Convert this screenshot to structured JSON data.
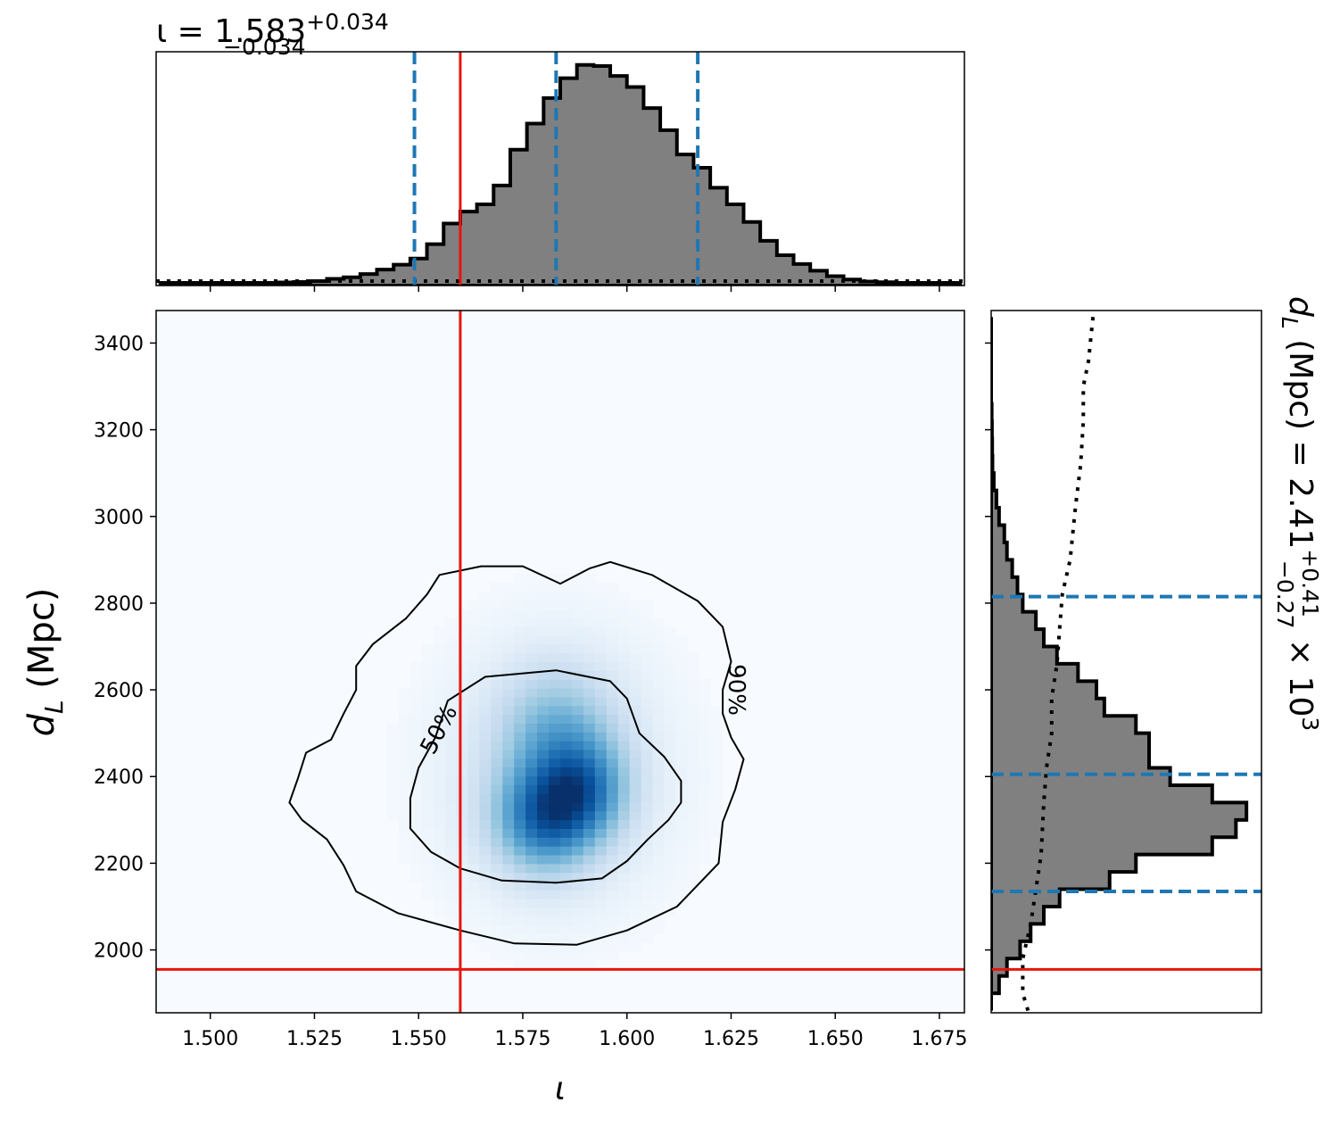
{
  "chart_data": [
    {
      "type": "histogram",
      "panel": "iota-marginal",
      "title_main": "ι = 1.583",
      "title_sup": "+0.034",
      "title_sub": "−0.034",
      "xlim": [
        1.487,
        1.681
      ],
      "median": 1.583,
      "lower": 1.549,
      "upper": 1.617,
      "injected": 1.56,
      "bin_edges": [
        1.488,
        1.492,
        1.496,
        1.5,
        1.504,
        1.508,
        1.512,
        1.516,
        1.52,
        1.524,
        1.528,
        1.532,
        1.536,
        1.54,
        1.544,
        1.548,
        1.552,
        1.556,
        1.56,
        1.564,
        1.568,
        1.572,
        1.576,
        1.58,
        1.584,
        1.588,
        1.592,
        1.596,
        1.6,
        1.604,
        1.608,
        1.612,
        1.616,
        1.62,
        1.624,
        1.628,
        1.632,
        1.636,
        1.64,
        1.644,
        1.648,
        1.652,
        1.656,
        1.66,
        1.664,
        1.668,
        1.672,
        1.676,
        1.68
      ],
      "density": [
        0.0,
        0.0,
        0.0,
        0.0,
        0.0,
        0.0,
        0.0,
        0.002,
        0.004,
        0.008,
        0.018,
        0.025,
        0.04,
        0.06,
        0.082,
        0.11,
        0.175,
        0.268,
        0.322,
        0.355,
        0.44,
        0.602,
        0.72,
        0.835,
        0.925,
        0.985,
        0.98,
        0.935,
        0.885,
        0.79,
        0.69,
        0.58,
        0.52,
        0.43,
        0.355,
        0.275,
        0.19,
        0.125,
        0.085,
        0.055,
        0.03,
        0.015,
        0.006,
        0.003,
        0.0,
        0.0,
        0.0,
        0.0
      ],
      "prior_level": 0.025
    },
    {
      "type": "heatmap",
      "panel": "joint",
      "xlabel": "ι",
      "ylabel": "d_L (Mpc)",
      "xlim": [
        1.487,
        1.681
      ],
      "ylim": [
        1855,
        3475
      ],
      "xticks": [
        "1.500",
        "1.525",
        "1.550",
        "1.575",
        "1.600",
        "1.625",
        "1.650",
        "1.675"
      ],
      "xtick_values": [
        1.5,
        1.525,
        1.55,
        1.575,
        1.6,
        1.625,
        1.65,
        1.675
      ],
      "yticks": [
        "2000",
        "2200",
        "2400",
        "2600",
        "2800",
        "3000",
        "3200",
        "3400"
      ],
      "ytick_values": [
        2000,
        2200,
        2400,
        2600,
        2800,
        3000,
        3200,
        3400
      ],
      "injected_iota": 1.56,
      "injected_dL": 1955,
      "density_peaks": [
        {
          "x": 1.58,
          "y": 2300,
          "sx": 0.0085,
          "sy": 85,
          "w": 1.0
        },
        {
          "x": 1.59,
          "y": 2370,
          "sx": 0.0075,
          "sy": 80,
          "w": 0.75
        },
        {
          "x": 1.583,
          "y": 2500,
          "sx": 0.0095,
          "sy": 105,
          "w": 0.55
        },
        {
          "x": 1.583,
          "y": 2410,
          "sx": 0.019,
          "sy": 215,
          "w": 0.35
        }
      ],
      "contours": [
        {
          "label": "50%",
          "points": [
            [
              1.566,
              2630
            ],
            [
              1.583,
              2645
            ],
            [
              1.596,
              2620
            ],
            [
              1.6,
              2580
            ],
            [
              1.603,
              2500
            ],
            [
              1.609,
              2445
            ],
            [
              1.613,
              2390
            ],
            [
              1.613,
              2340
            ],
            [
              1.61,
              2300
            ],
            [
              1.605,
              2255
            ],
            [
              1.6,
              2205
            ],
            [
              1.594,
              2165
            ],
            [
              1.583,
              2155
            ],
            [
              1.57,
              2160
            ],
            [
              1.56,
              2188
            ],
            [
              1.553,
              2226
            ],
            [
              1.548,
              2280
            ],
            [
              1.548,
              2350
            ],
            [
              1.55,
              2420
            ],
            [
              1.554,
              2490
            ],
            [
              1.557,
              2575
            ]
          ]
        },
        {
          "label": "90%",
          "points": [
            [
              1.555,
              2865
            ],
            [
              1.565,
              2885
            ],
            [
              1.575,
              2885
            ],
            [
              1.584,
              2845
            ],
            [
              1.591,
              2880
            ],
            [
              1.596,
              2895
            ],
            [
              1.606,
              2865
            ],
            [
              1.617,
              2805
            ],
            [
              1.623,
              2745
            ],
            [
              1.625,
              2665
            ],
            [
              1.623,
              2600
            ],
            [
              1.623,
              2545
            ],
            [
              1.625,
              2490
            ],
            [
              1.628,
              2440
            ],
            [
              1.626,
              2370
            ],
            [
              1.623,
              2295
            ],
            [
              1.622,
              2200
            ],
            [
              1.612,
              2100
            ],
            [
              1.6,
              2045
            ],
            [
              1.588,
              2012
            ],
            [
              1.573,
              2015
            ],
            [
              1.56,
              2045
            ],
            [
              1.545,
              2085
            ],
            [
              1.535,
              2135
            ],
            [
              1.532,
              2195
            ],
            [
              1.528,
              2255
            ],
            [
              1.522,
              2300
            ],
            [
              1.519,
              2340
            ],
            [
              1.521,
              2395
            ],
            [
              1.523,
              2455
            ],
            [
              1.529,
              2485
            ],
            [
              1.532,
              2545
            ],
            [
              1.535,
              2600
            ],
            [
              1.535,
              2655
            ],
            [
              1.539,
              2705
            ],
            [
              1.547,
              2765
            ],
            [
              1.552,
              2820
            ]
          ]
        }
      ]
    },
    {
      "type": "histogram",
      "panel": "dL-marginal",
      "orientation": "horizontal",
      "title_main": "d",
      "title_sub_L": "L",
      "title_rest": " (Mpc) = 2.41",
      "title_sup": "+0.41",
      "title_sub": "−0.27",
      "title_tail": " × 10",
      "title_exp": "3",
      "ylim": [
        1855,
        3475
      ],
      "median": 2405,
      "lower": 2135,
      "upper": 2815,
      "injected": 1955,
      "bin_edges": [
        1860,
        1900,
        1940,
        1980,
        2020,
        2060,
        2100,
        2140,
        2180,
        2220,
        2260,
        2300,
        2340,
        2380,
        2420,
        2460,
        2500,
        2540,
        2580,
        2620,
        2660,
        2700,
        2740,
        2780,
        2820,
        2860,
        2900,
        2940,
        2980,
        3020,
        3060,
        3100,
        3140,
        3180,
        3220,
        3260,
        3300,
        3340,
        3380,
        3420,
        3460
      ],
      "density": [
        0.0,
        0.03,
        0.06,
        0.11,
        0.15,
        0.2,
        0.26,
        0.45,
        0.55,
        0.84,
        0.93,
        0.97,
        0.84,
        0.68,
        0.6,
        0.6,
        0.55,
        0.43,
        0.4,
        0.33,
        0.25,
        0.2,
        0.17,
        0.12,
        0.1,
        0.08,
        0.06,
        0.05,
        0.03,
        0.02,
        0.01,
        0.005,
        0.004,
        0.003,
        0.002,
        0.0,
        0.0,
        0.0,
        0.0,
        0.0
      ],
      "prior": [
        [
          1860,
          0.14
        ],
        [
          1900,
          0.12
        ],
        [
          1980,
          0.12
        ],
        [
          2060,
          0.15
        ],
        [
          2140,
          0.17
        ],
        [
          2220,
          0.19
        ],
        [
          2340,
          0.2
        ],
        [
          2420,
          0.21
        ],
        [
          2500,
          0.23
        ],
        [
          2580,
          0.23
        ],
        [
          2660,
          0.25
        ],
        [
          2740,
          0.26
        ],
        [
          2820,
          0.27
        ],
        [
          2900,
          0.3
        ],
        [
          3020,
          0.32
        ],
        [
          3120,
          0.34
        ],
        [
          3220,
          0.35
        ],
        [
          3300,
          0.35
        ],
        [
          3360,
          0.37
        ],
        [
          3420,
          0.38
        ],
        [
          3475,
          0.39
        ]
      ]
    }
  ]
}
